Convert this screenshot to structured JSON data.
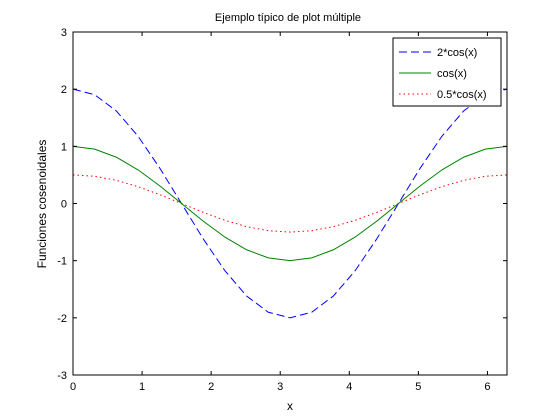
{
  "chart_data": {
    "type": "line",
    "title": "Ejemplo típico de plot múltiple",
    "xlabel": "x",
    "ylabel": "Funciones cosenoidales",
    "xlim": [
      0,
      6.2832
    ],
    "ylim": [
      -3,
      3
    ],
    "x_ticks": [
      "0",
      "1",
      "2",
      "3",
      "4",
      "5",
      "6"
    ],
    "y_ticks": [
      "-3",
      "-2",
      "-1",
      "0",
      "1",
      "2",
      "3"
    ],
    "grid": false,
    "legend_position": "top-right",
    "x": [
      0,
      0.3142,
      0.6283,
      0.9425,
      1.2566,
      1.5708,
      1.885,
      2.1991,
      2.5133,
      2.8274,
      3.1416,
      3.4558,
      3.7699,
      4.0841,
      4.3982,
      4.7124,
      5.0265,
      5.3407,
      5.6549,
      5.969,
      6.2832
    ],
    "series": [
      {
        "name": "2*cos(x)",
        "color": "#0000ff",
        "dash": "dashed",
        "values": [
          2.0,
          1.902,
          1.618,
          1.176,
          0.618,
          0.0,
          -0.618,
          -1.176,
          -1.618,
          -1.902,
          -2.0,
          -1.902,
          -1.618,
          -1.176,
          -0.618,
          0.0,
          0.618,
          1.176,
          1.618,
          1.902,
          2.0
        ]
      },
      {
        "name": "cos(x)",
        "color": "#008000",
        "dash": "solid",
        "values": [
          1.0,
          0.951,
          0.809,
          0.588,
          0.309,
          0.0,
          -0.309,
          -0.588,
          -0.809,
          -0.951,
          -1.0,
          -0.951,
          -0.809,
          -0.588,
          -0.309,
          0.0,
          0.309,
          0.588,
          0.809,
          0.951,
          1.0
        ]
      },
      {
        "name": "0.5*cos(x)",
        "color": "#ff0000",
        "dash": "dotted",
        "values": [
          0.5,
          0.476,
          0.405,
          0.294,
          0.155,
          0.0,
          -0.155,
          -0.294,
          -0.405,
          -0.476,
          -0.5,
          -0.476,
          -0.405,
          -0.294,
          -0.155,
          0.0,
          0.155,
          0.294,
          0.405,
          0.476,
          0.5
        ]
      }
    ]
  }
}
